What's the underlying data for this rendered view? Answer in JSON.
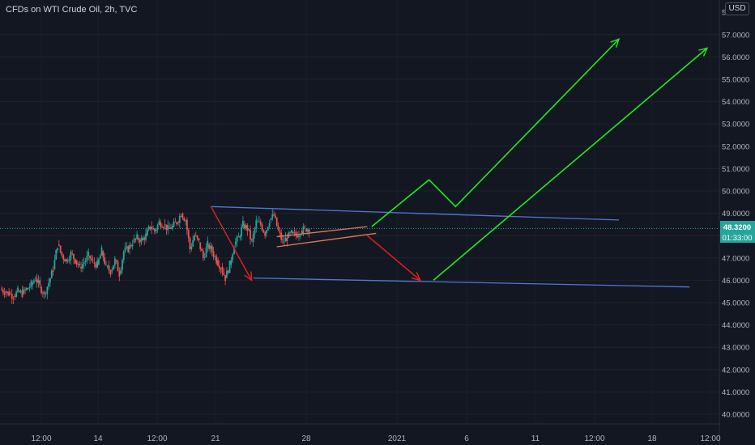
{
  "header": {
    "title": "CFDs on WTI Crude Oil, 2h, TVC",
    "currency_button": "USD"
  },
  "price_labels": {
    "last_price": "48.3200",
    "countdown": "01:33:00"
  },
  "colors": {
    "background": "#131722",
    "up": "#26a69a",
    "down": "#ef5350",
    "channel": "#4c79d6",
    "wedge": "#e1785a",
    "bull_arrow": "#1fea1f",
    "bear_arrow": "#e82020",
    "last_price": "#26a69a"
  },
  "chart_data": {
    "type": "candlestick",
    "symbol": "CFDs on WTI Crude Oil, 2h, TVC",
    "ylim": [
      39.5,
      58
    ],
    "y_ticks": [
      "40.0000",
      "41.0000",
      "42.0000",
      "43.0000",
      "44.0000",
      "45.0000",
      "46.0000",
      "47.0000",
      "48.0000",
      "49.0000",
      "50.0000",
      "51.0000",
      "52.0000",
      "53.0000",
      "54.0000",
      "55.0000",
      "56.0000",
      "57.0000"
    ],
    "y_tick_cutoff_label": "5",
    "x_ticks": [
      "12:00",
      "14",
      "12:00",
      "21",
      "28",
      "2021",
      "6",
      "11",
      "12:00",
      "18",
      "12:00"
    ],
    "last_price": 48.32,
    "price_series": [
      45.6,
      45.5,
      45.4,
      45.3,
      45.5,
      45.4,
      45.6,
      45.8,
      46.1,
      45.7,
      45.4,
      45.9,
      46.5,
      47.6,
      47.1,
      46.9,
      47.2,
      46.9,
      46.6,
      46.8,
      47.1,
      46.8,
      46.7,
      47.3,
      46.6,
      46.4,
      46.9,
      46.3,
      47.3,
      47.4,
      47.7,
      47.9,
      47.8,
      48.0,
      48.4,
      48.2,
      48.6,
      48.5,
      48.3,
      48.4,
      48.6,
      49.0,
      48.7,
      47.4,
      48.0,
      47.7,
      47.0,
      47.6,
      47.3,
      46.9,
      46.6,
      46.1,
      46.7,
      47.6,
      47.9,
      48.5,
      48.3,
      47.7,
      48.6,
      48.5,
      48.1,
      48.7,
      48.9,
      48.2,
      47.7,
      47.9,
      48.1,
      48.0,
      48.2,
      48.3,
      48.32
    ],
    "annotations": {
      "descending_channel_upper": [
        [
          47.6,
          49.3
        ],
        [
          140,
          48.7
        ]
      ],
      "descending_channel_lower": [
        [
          57.2,
          46.1
        ],
        [
          156,
          45.7
        ]
      ],
      "rising_wedge_upper": [
        [
          62.5,
          47.95
        ],
        [
          83,
          48.4
        ]
      ],
      "rising_wedge_lower": [
        [
          62.5,
          47.5
        ],
        [
          85,
          48.1
        ]
      ],
      "bear_leg_1": [
        [
          47.6,
          49.3
        ],
        [
          56.8,
          46.0
        ]
      ],
      "bear_leg_2": [
        [
          83,
          48.0
        ],
        [
          95,
          46.0
        ]
      ],
      "bull_path_1": [
        [
          84,
          48.4
        ],
        [
          97,
          50.5
        ],
        [
          103,
          49.3
        ],
        [
          140,
          56.8
        ]
      ],
      "bull_path_2": [
        [
          98,
          46.0
        ],
        [
          160,
          56.4
        ]
      ]
    }
  }
}
